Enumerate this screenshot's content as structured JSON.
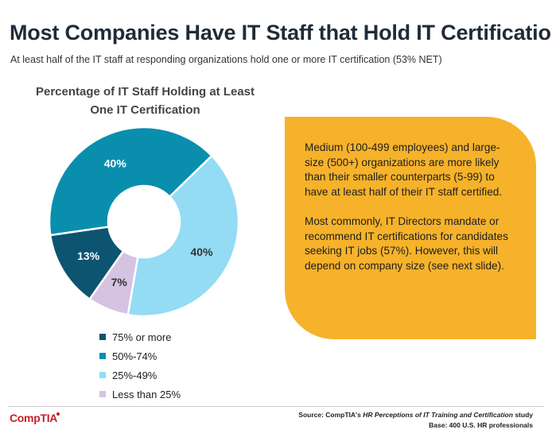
{
  "header": {
    "title": "Most Companies Have IT Staff that Hold IT Certifications",
    "subtitle": "At least half of the IT staff at responding organizations hold one or more IT certification (53% NET)"
  },
  "chart_data": {
    "type": "pie",
    "title_line1": "Percentage of IT Staff Holding at Least",
    "title_line2": "One IT Certification",
    "categories": [
      "75% or more",
      "50%-74%",
      "25%-49%",
      "Less than 25%"
    ],
    "values": [
      13,
      40,
      40,
      7
    ],
    "value_labels": [
      "13%",
      "40%",
      "40%",
      "7%"
    ],
    "colors": [
      "#0d5470",
      "#0a8eae",
      "#93dcf4",
      "#d6c3e2"
    ],
    "donut": true,
    "legend_placement": "bottom"
  },
  "callout": {
    "paragraph1": "Medium (100-499 employees) and large-size (500+) organizations are more likely than their smaller counterparts (5-99) to have at least half of their IT staff certified.",
    "paragraph2": "Most commonly, IT Directors mandate or recommend IT certifications for candidates seeking IT jobs (57%). However, this will depend on company size (see next slide)."
  },
  "footer": {
    "logo": "CompTIA",
    "source_prefix": "Source: CompTIA's",
    "source_title": "HR Perceptions of IT Training and Certification",
    "source_suffix": "study",
    "base": "Base: 400 U.S. HR professionals"
  }
}
